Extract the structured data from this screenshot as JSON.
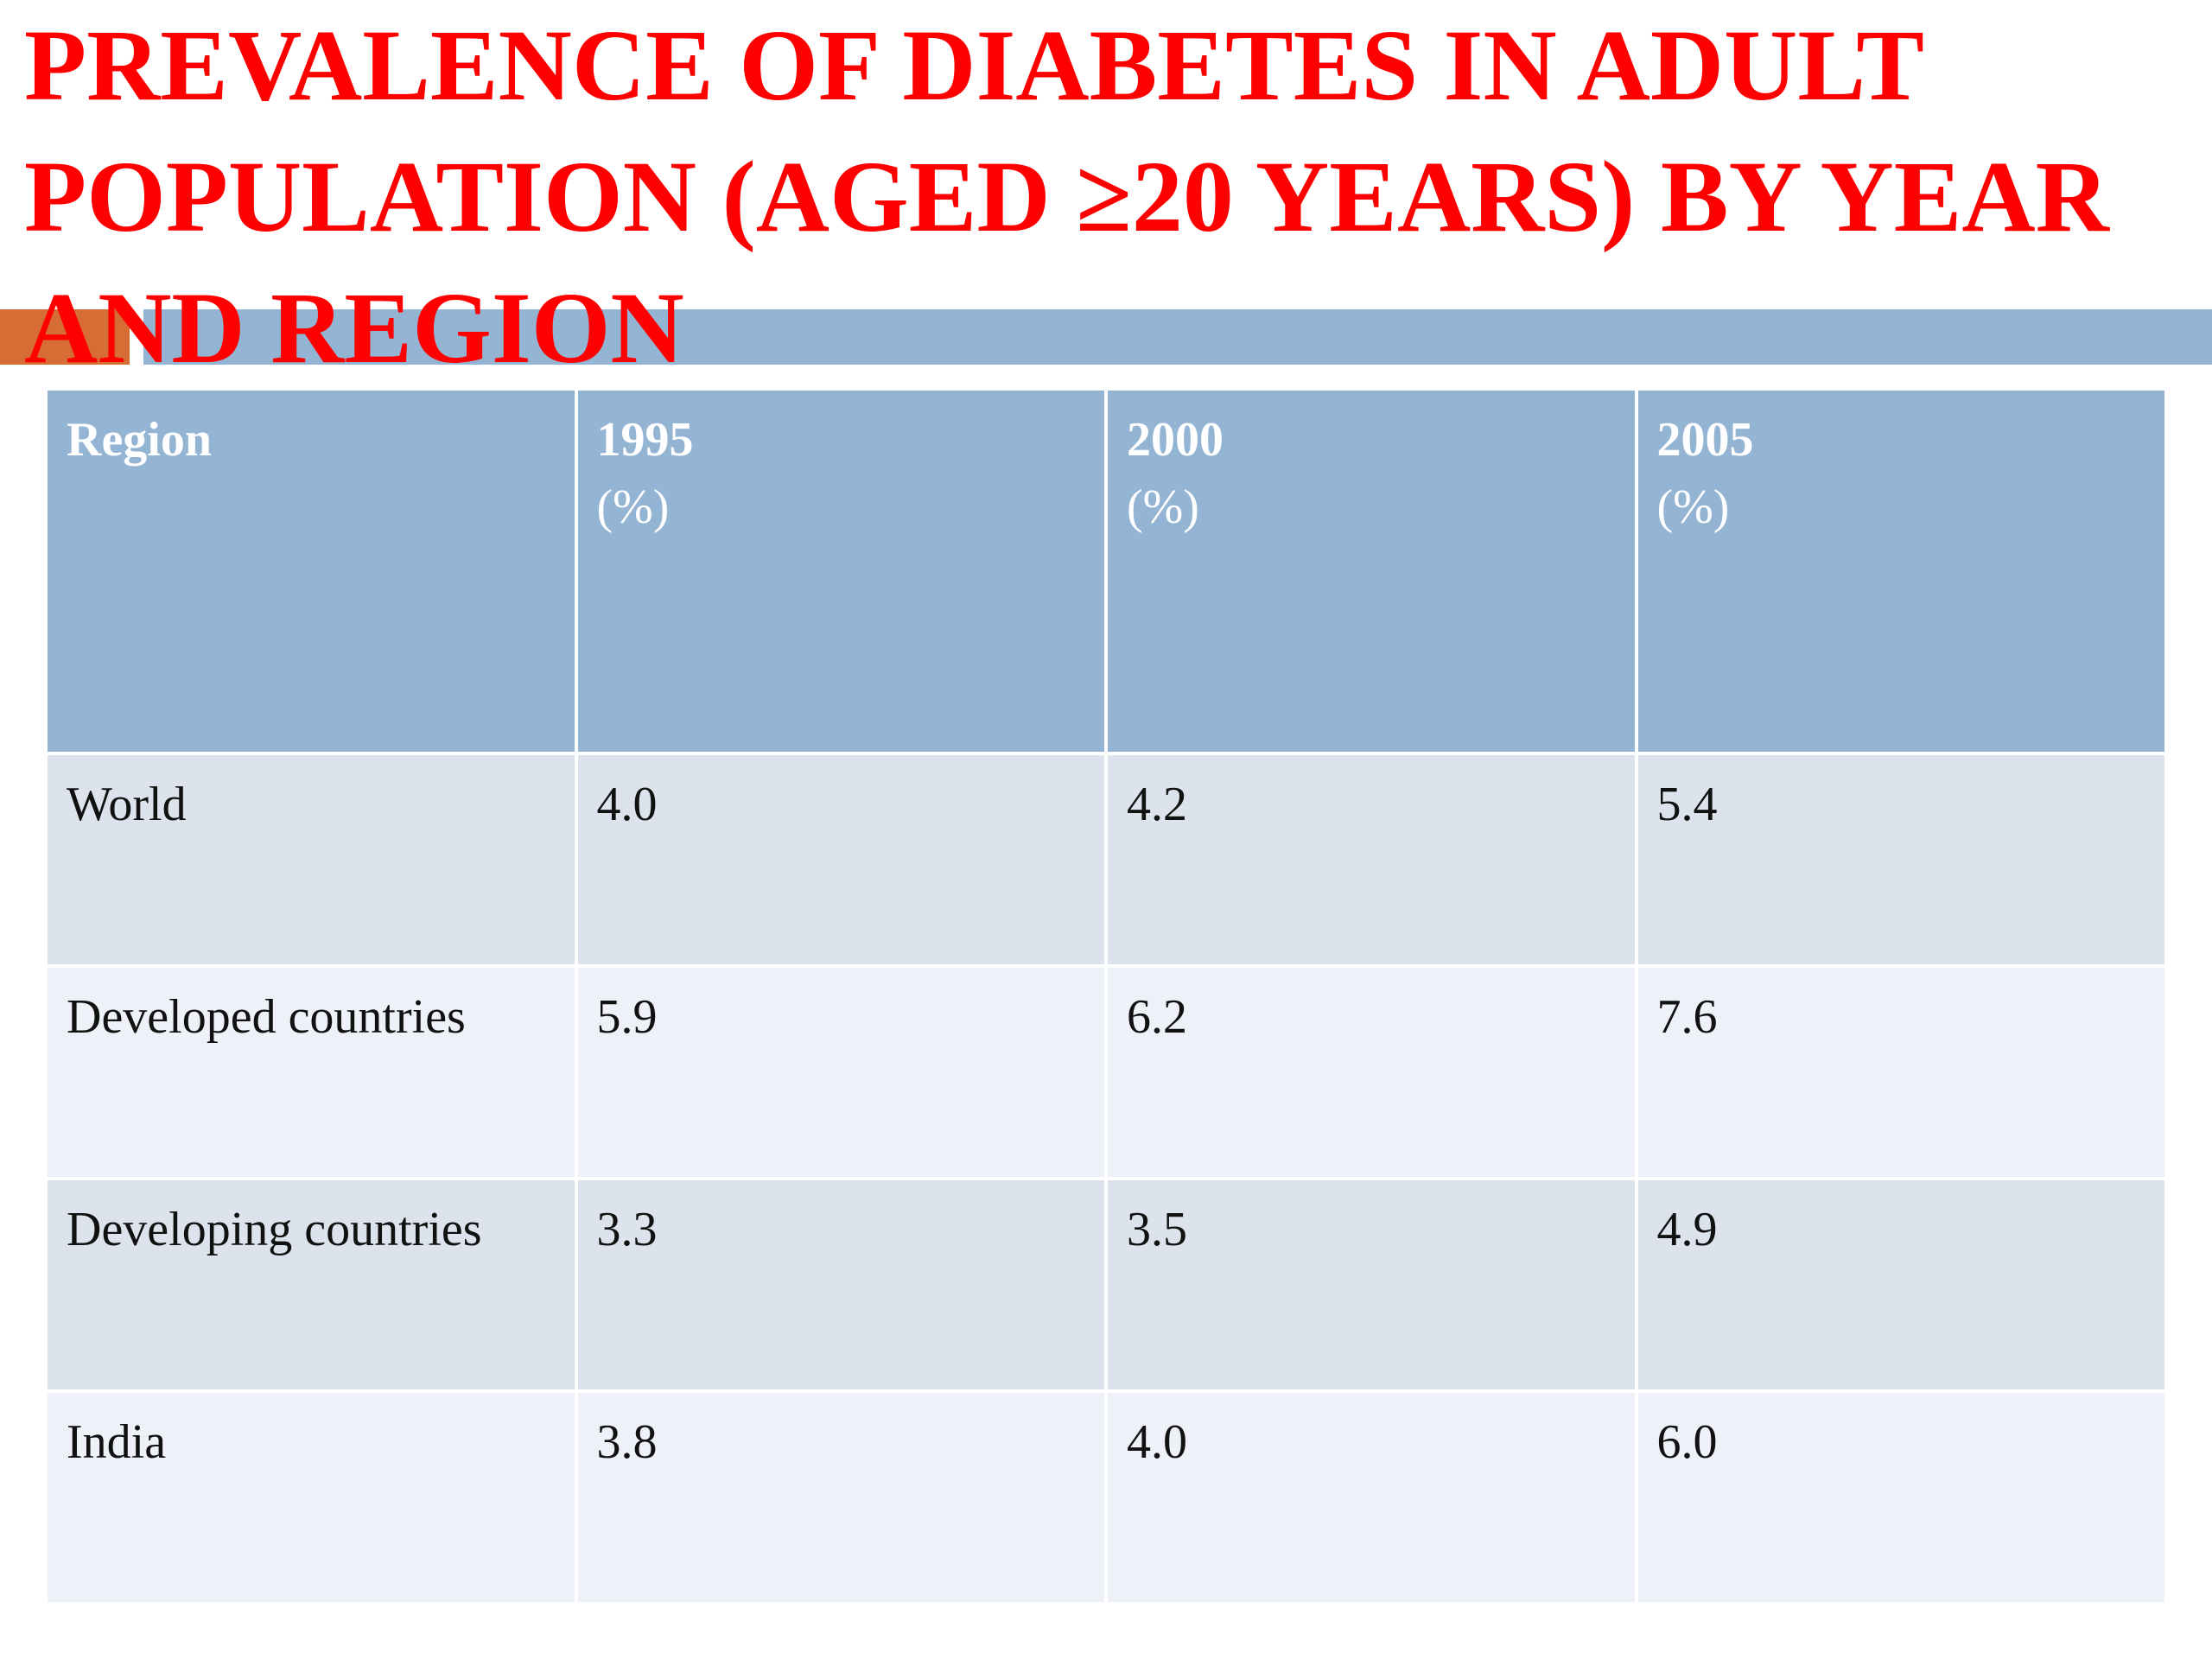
{
  "slide": {
    "title_lines": [
      "PREVALENCE OF DIABETES IN ADULT",
      "POPULATION (AGED ≥20 YEARS) BY YEAR",
      "AND REGION"
    ]
  },
  "colors": {
    "title": "#fe0000",
    "header_fill": "#94b4d4",
    "row_fill_dark": "#dde3ec",
    "row_fill_light": "#eef2f8",
    "accent": "#d56d35"
  },
  "chart_data": {
    "type": "table",
    "columns": [
      {
        "label": "Region",
        "unit": ""
      },
      {
        "label": "1995",
        "unit": "(%)"
      },
      {
        "label": "2000",
        "unit": "(%)"
      },
      {
        "label": "2005",
        "unit": "(%)"
      }
    ],
    "rows": [
      {
        "region": "World",
        "values": [
          "4.0",
          "4.2",
          "5.4"
        ]
      },
      {
        "region": "Developed countries",
        "values": [
          "5.9",
          "6.2",
          "7.6"
        ]
      },
      {
        "region": "Developing countries",
        "values": [
          "3.3",
          "3.5",
          "4.9"
        ]
      },
      {
        "region": "India",
        "values": [
          "3.8",
          "4.0",
          "6.0"
        ]
      }
    ]
  }
}
